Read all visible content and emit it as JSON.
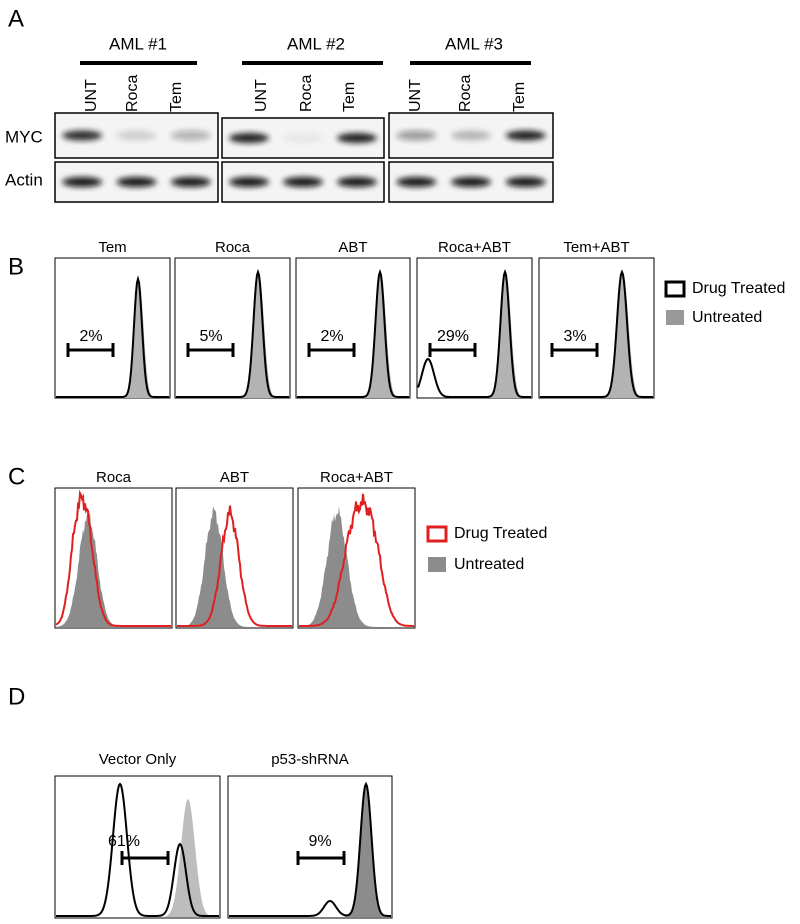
{
  "panel_a": {
    "label": "A",
    "rows": [
      "MYC",
      "Actin"
    ],
    "groups": [
      {
        "title": "AML #1",
        "lanes": [
          "UNT",
          "Roca",
          "Tem"
        ]
      },
      {
        "title": "AML #2",
        "lanes": [
          "UNT",
          "Roca",
          "Tem"
        ]
      },
      {
        "title": "AML #3",
        "lanes": [
          "UNT",
          "Roca",
          "Tem"
        ]
      }
    ]
  },
  "panel_b": {
    "label": "B",
    "plots": [
      {
        "title": "Tem",
        "gate": "2%"
      },
      {
        "title": "Roca",
        "gate": "5%"
      },
      {
        "title": "ABT",
        "gate": "2%"
      },
      {
        "title": "Roca+ABT",
        "gate": "29%"
      },
      {
        "title": "Tem+ABT",
        "gate": "3%"
      }
    ],
    "legend": [
      "Drug Treated",
      "Untreated"
    ]
  },
  "panel_c": {
    "label": "C",
    "plots": [
      {
        "title": "Roca"
      },
      {
        "title": "ABT"
      },
      {
        "title": "Roca+ABT"
      }
    ],
    "legend": [
      "Drug Treated",
      "Untreated"
    ]
  },
  "panel_d": {
    "label": "D",
    "plots": [
      {
        "title": "Vector Only",
        "gate": "61%"
      },
      {
        "title": "p53-shRNA",
        "gate": "9%"
      }
    ]
  }
}
